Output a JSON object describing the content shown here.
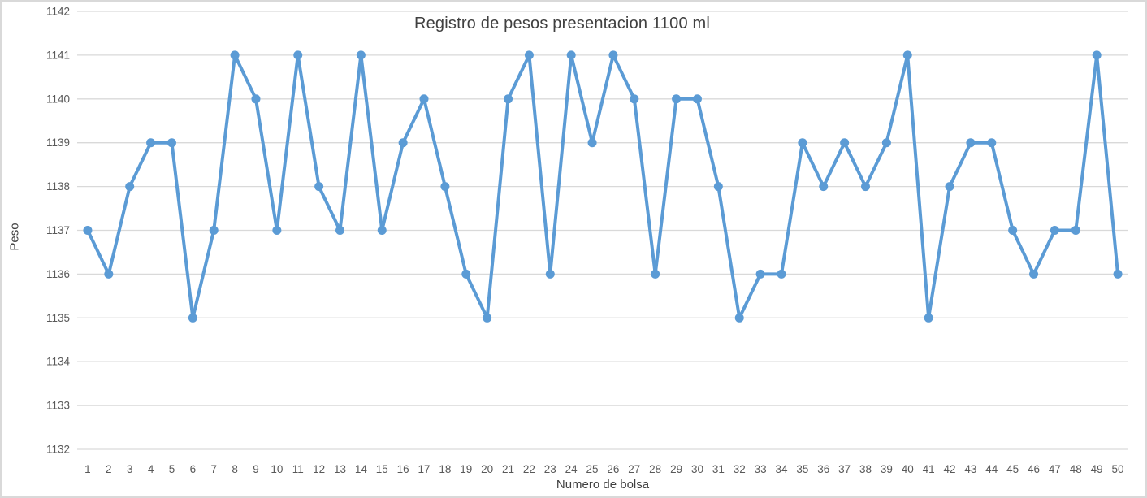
{
  "chart_data": {
    "type": "line",
    "title": "Registro de pesos presentacion 1100 ml",
    "xlabel": "Numero de bolsa",
    "ylabel": "Peso",
    "x": [
      1,
      2,
      3,
      4,
      5,
      6,
      7,
      8,
      9,
      10,
      11,
      12,
      13,
      14,
      15,
      16,
      17,
      18,
      19,
      20,
      21,
      22,
      23,
      24,
      25,
      26,
      27,
      28,
      29,
      30,
      31,
      32,
      33,
      34,
      35,
      36,
      37,
      38,
      39,
      40,
      41,
      42,
      43,
      44,
      45,
      46,
      47,
      48,
      49,
      50
    ],
    "series": [
      {
        "name": "Peso",
        "values": [
          1137,
          1136,
          1138,
          1139,
          1139,
          1135,
          1137,
          1141,
          1140,
          1137,
          1141,
          1138,
          1137,
          1141,
          1137,
          1139,
          1140,
          1138,
          1136,
          1135,
          1140,
          1141,
          1136,
          1141,
          1139,
          1141,
          1140,
          1136,
          1140,
          1140,
          1138,
          1135,
          1136,
          1136,
          1139,
          1138,
          1139,
          1138,
          1139,
          1141,
          1135,
          1138,
          1139,
          1139,
          1137,
          1136,
          1137,
          1137,
          1141,
          1136
        ]
      }
    ],
    "ylim": [
      1132,
      1142
    ],
    "ytick_step": 1,
    "yticks": [
      1132,
      1133,
      1134,
      1135,
      1136,
      1137,
      1138,
      1139,
      1140,
      1141,
      1142
    ],
    "grid": "horizontal",
    "legend": "none",
    "marker": "circle"
  },
  "colors": {
    "line": "#5B9BD5",
    "marker": "#5B9BD5",
    "gridline": "#D9D9D9",
    "tick_text": "#595959",
    "title_text": "#404040",
    "frame_border": "#D9D9D9"
  }
}
